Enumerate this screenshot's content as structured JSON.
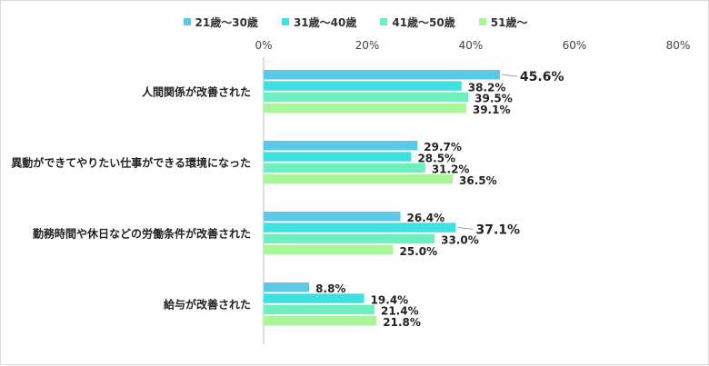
{
  "chart_data": {
    "type": "bar",
    "orientation": "horizontal",
    "categories": [
      "人間関係が改善された",
      "異動ができてやりたい仕事ができる環境になった",
      "勤務時間や休日などの労働条件が改善された",
      "給与が改善された"
    ],
    "series": [
      {
        "name": "21歳～30歳",
        "color": "#5bc8ea",
        "values": [
          45.6,
          29.7,
          26.4,
          8.8
        ]
      },
      {
        "name": "31歳～40歳",
        "color": "#3ee0e0",
        "values": [
          38.2,
          28.5,
          37.1,
          19.4
        ]
      },
      {
        "name": "41歳～50歳",
        "color": "#6cf0c0",
        "values": [
          39.5,
          31.2,
          33.0,
          21.4
        ]
      },
      {
        "name": "51歳～",
        "color": "#a8f59a",
        "values": [
          39.1,
          36.5,
          25.0,
          21.8
        ]
      }
    ],
    "value_labels": [
      [
        "45.6%",
        "38.2%",
        "39.5%",
        "39.1%"
      ],
      [
        "29.7%",
        "28.5%",
        "31.2%",
        "36.5%"
      ],
      [
        "26.4%",
        "37.1%",
        "33.0%",
        "25.0%"
      ],
      [
        "8.8%",
        "19.4%",
        "21.4%",
        "21.8%"
      ]
    ],
    "highlighted": [
      [
        0,
        0
      ],
      [
        2,
        1
      ]
    ],
    "xlim": [
      0,
      80
    ],
    "xticks": [
      "0%",
      "20%",
      "40%",
      "60%",
      "80%"
    ],
    "axis_position": "top",
    "legend_position": "top",
    "grid": false
  }
}
